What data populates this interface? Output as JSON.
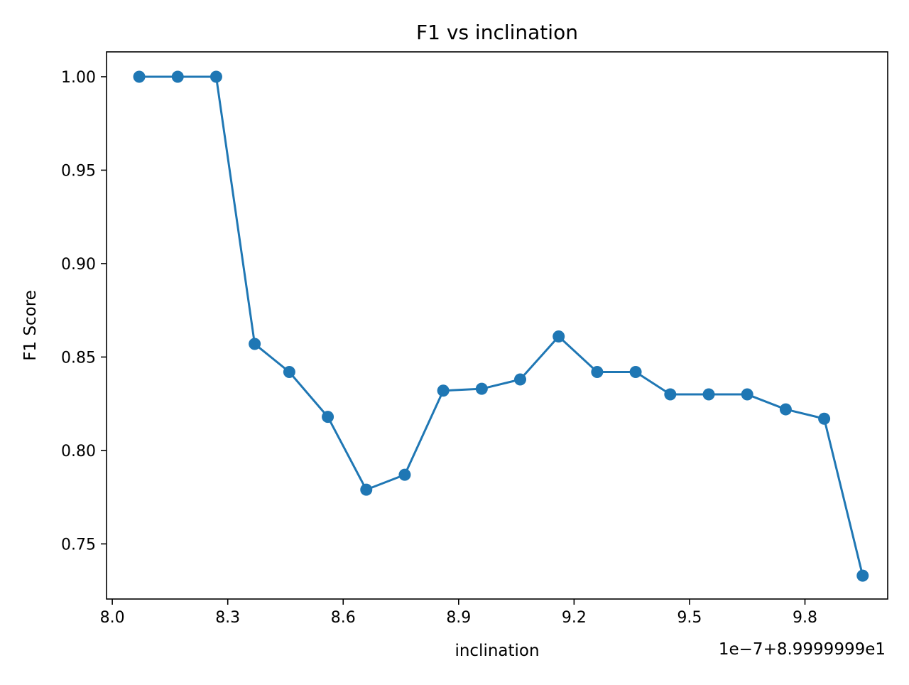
{
  "chart_data": {
    "type": "line",
    "title": "F1 vs inclination",
    "xlabel": "inclination",
    "ylabel": "F1 Score",
    "x_offset_label": "1e−7+8.9999999e1",
    "xlim": [
      7.985,
      10.015
    ],
    "ylim": [
      0.7205,
      1.0133
    ],
    "xticks": [
      8.0,
      8.3,
      8.6,
      8.9,
      9.2,
      9.5,
      9.8
    ],
    "xtick_labels": [
      "8.0",
      "8.3",
      "8.6",
      "8.9",
      "9.2",
      "9.5",
      "9.8"
    ],
    "yticks": [
      0.75,
      0.8,
      0.85,
      0.9,
      0.95,
      1.0
    ],
    "ytick_labels": [
      "0.75",
      "0.80",
      "0.85",
      "0.90",
      "0.95",
      "1.00"
    ],
    "grid": false,
    "series": [
      {
        "color": "#1f77b4",
        "marker": "circle",
        "x": [
          8.07,
          8.17,
          8.27,
          8.37,
          8.46,
          8.56,
          8.66,
          8.76,
          8.86,
          8.96,
          9.06,
          9.16,
          9.26,
          9.36,
          9.45,
          9.55,
          9.65,
          9.75,
          9.85,
          9.95
        ],
        "y": [
          1.0,
          1.0,
          1.0,
          0.857,
          0.842,
          0.818,
          0.779,
          0.787,
          0.832,
          0.833,
          0.838,
          0.861,
          0.842,
          0.842,
          0.83,
          0.83,
          0.83,
          0.822,
          0.817,
          0.733
        ]
      }
    ]
  }
}
